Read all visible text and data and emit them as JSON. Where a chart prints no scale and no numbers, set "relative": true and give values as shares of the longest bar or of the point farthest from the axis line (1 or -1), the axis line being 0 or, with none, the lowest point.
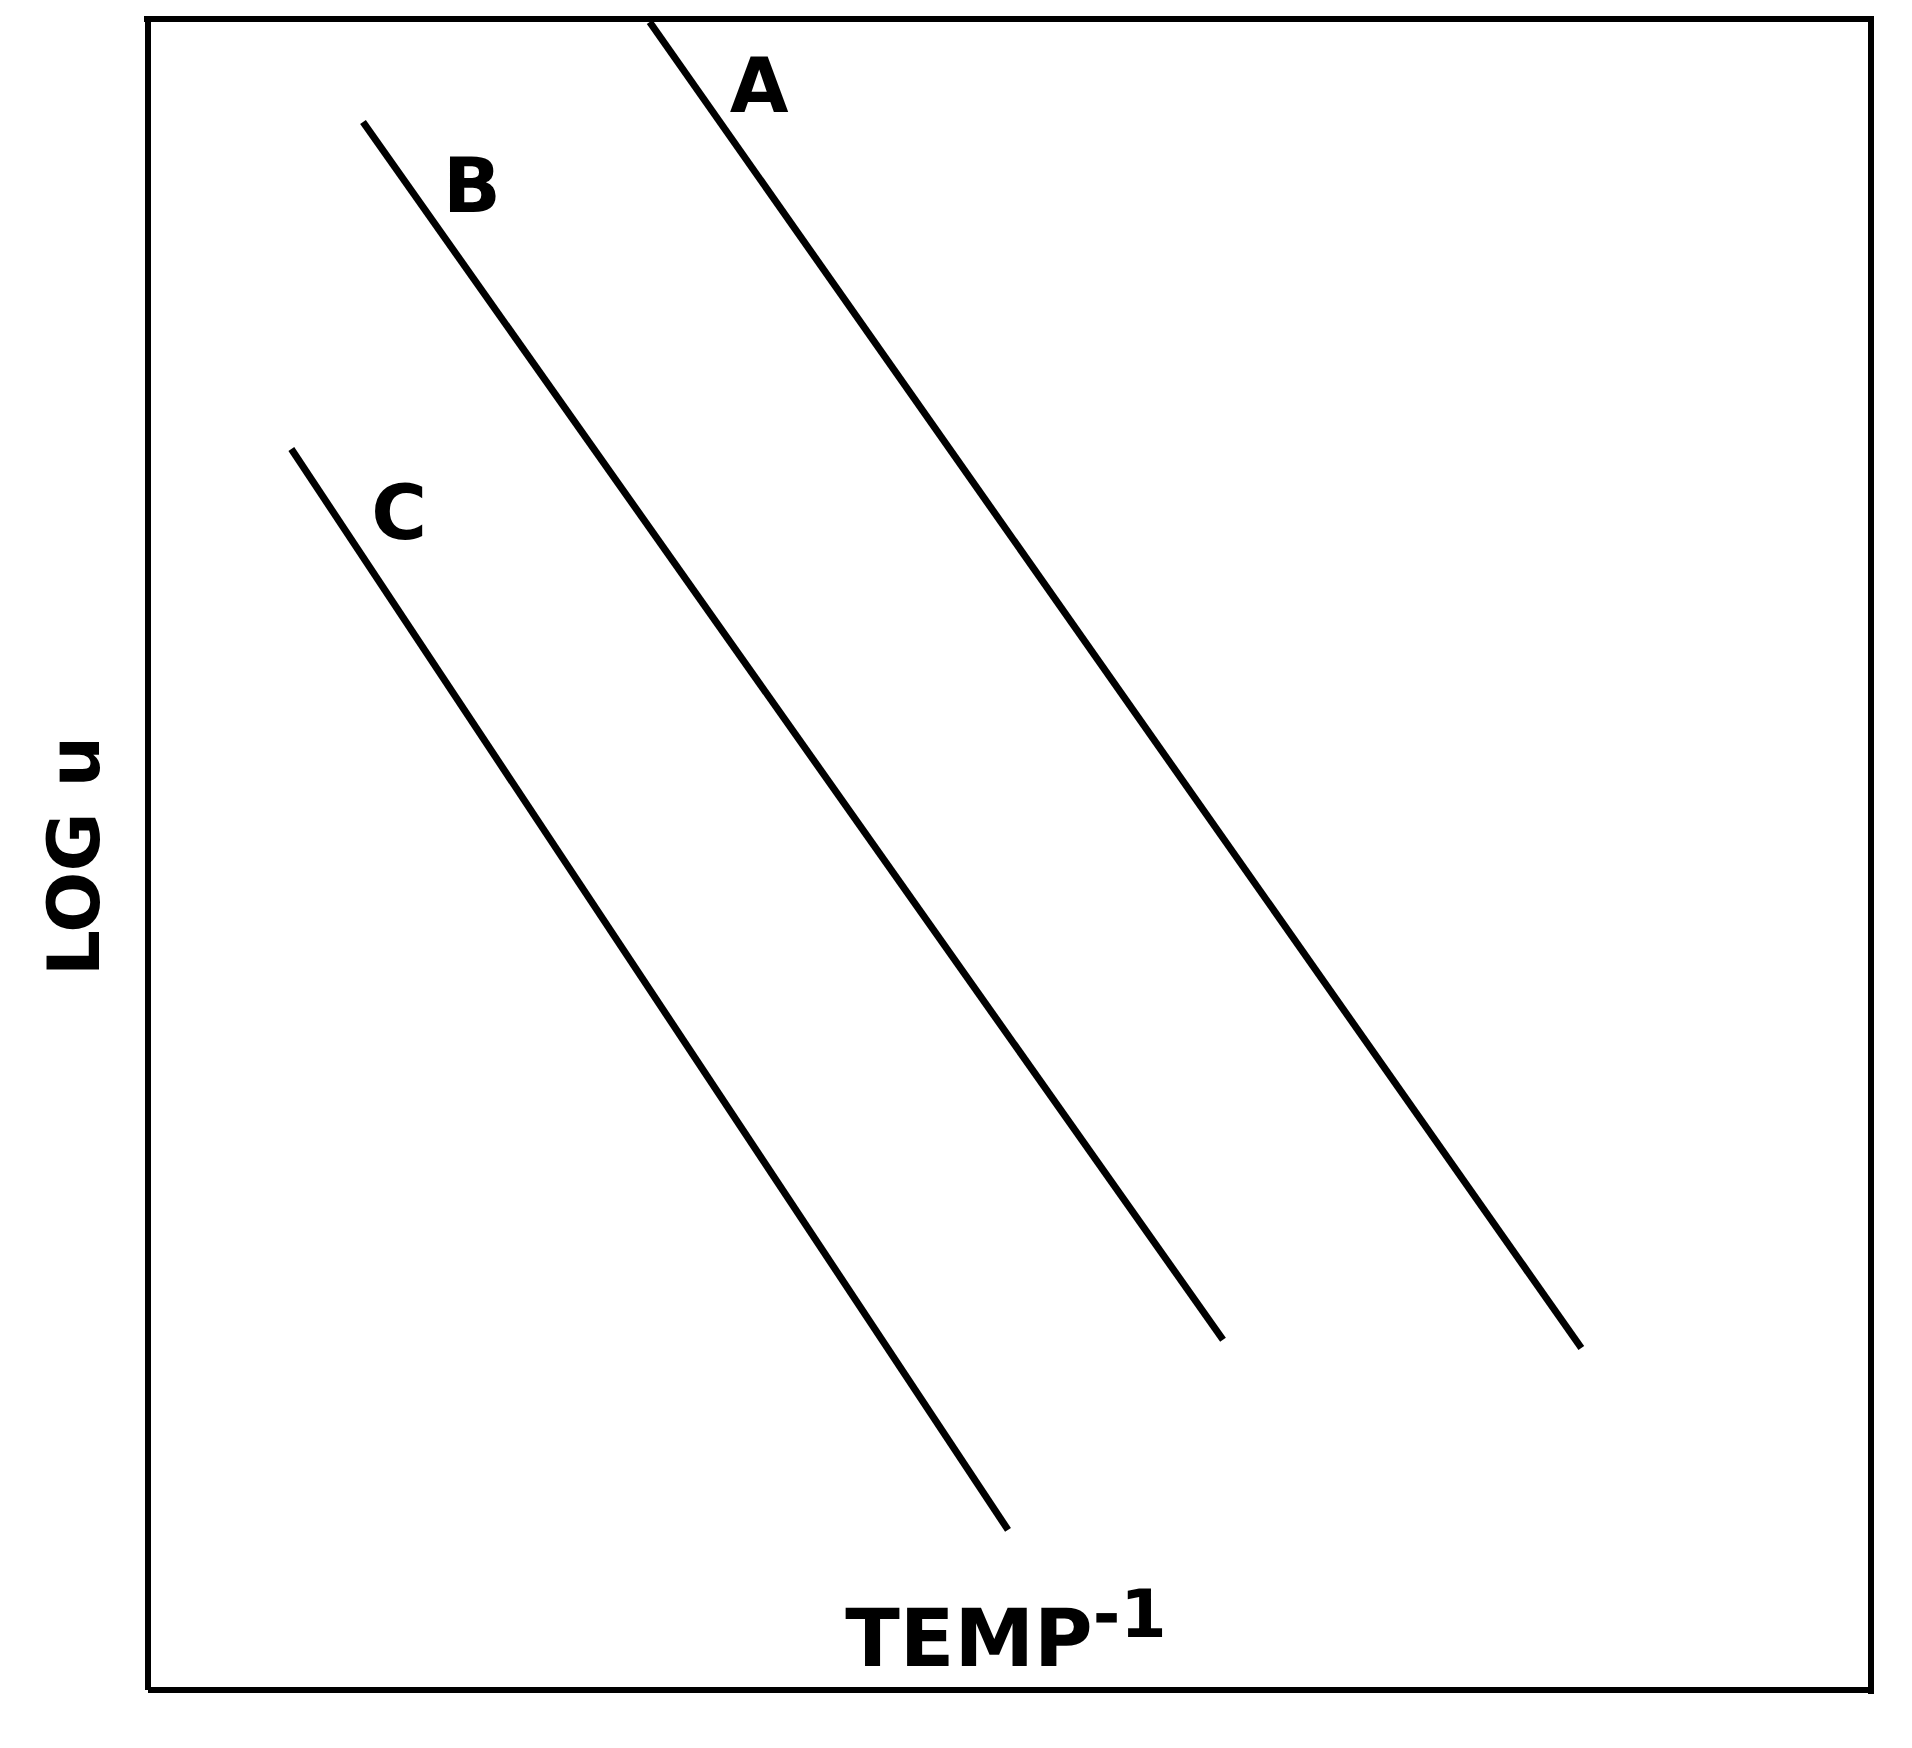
{
  "chart_data": {
    "type": "line",
    "relative": true,
    "xlabel": "TEMP$^{-1}$",
    "ylabel": "LOG u",
    "categories": [
      null,
      null,
      null,
      null,
      null,
      null,
      null,
      null,
      null,
      null,
      null,
      null,
      null,
      null,
      null,
      null,
      null,
      null,
      null,
      null,
      null,
      null,
      null,
      null,
      null
    ],
    "tick_labels": false,
    "grid": false,
    "legend": false,
    "marker": "none",
    "line_style": "solid",
    "series": [
      {
        "name": "A",
        "color": "#000000",
        "values": [
          null,
          null,
          null,
          null,
          null,
          null,
          null,
          1,
          null,
          null,
          null,
          null,
          null,
          null,
          null,
          null,
          null,
          null,
          null,
          null,
          0.205,
          null,
          null,
          null,
          null
        ]
      },
      {
        "name": "B",
        "color": "#000000",
        "values": [
          null,
          null,
          null,
          0.94,
          null,
          null,
          null,
          null,
          null,
          null,
          null,
          null,
          null,
          null,
          null,
          0.21,
          null,
          null,
          null,
          null,
          null,
          null,
          null,
          null,
          null
        ]
      },
      {
        "name": "C",
        "color": "#000000",
        "values": [
          null,
          null,
          0.744,
          null,
          null,
          null,
          null,
          null,
          null,
          null,
          null,
          null,
          0.096,
          null,
          null,
          null,
          null,
          null,
          null,
          null,
          null,
          null,
          null,
          null,
          null
        ]
      }
    ]
  }
}
